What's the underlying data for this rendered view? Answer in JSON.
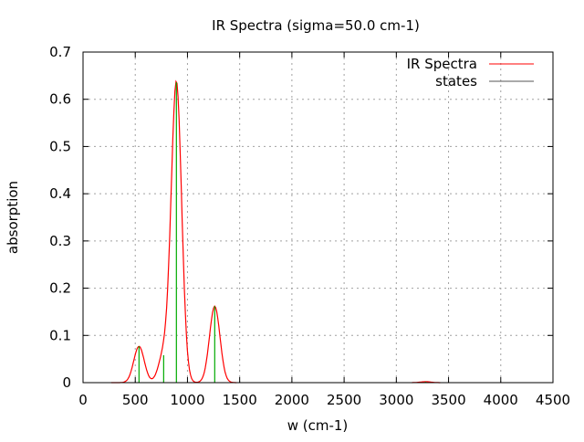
{
  "chart_data": {
    "type": "line",
    "title": "IR Spectra (sigma=50.0 cm-1)",
    "xlabel": "w (cm-1)",
    "ylabel": "absorption",
    "xlim": [
      0,
      4500
    ],
    "ylim": [
      0,
      0.7
    ],
    "xticks": [
      "0",
      "500",
      "1000",
      "1500",
      "2000",
      "2500",
      "3000",
      "3500",
      "4000",
      "4500"
    ],
    "yticks": [
      "0",
      "0.1",
      "0.2",
      "0.3",
      "0.4",
      "0.5",
      "0.6",
      "0.7"
    ],
    "grid": true,
    "legend_position": "top-right",
    "sigma": 50.0,
    "series": [
      {
        "name": "IR Spectra",
        "color": "#ff0000",
        "style": "line"
      },
      {
        "name": "states",
        "color": "#00aa00",
        "legend_color": "#555555",
        "style": "impulses",
        "x": [
          536,
          772,
          894,
          1261,
          3281
        ],
        "y": [
          0.077,
          0.058,
          0.636,
          0.162,
          0.002
        ]
      }
    ]
  }
}
